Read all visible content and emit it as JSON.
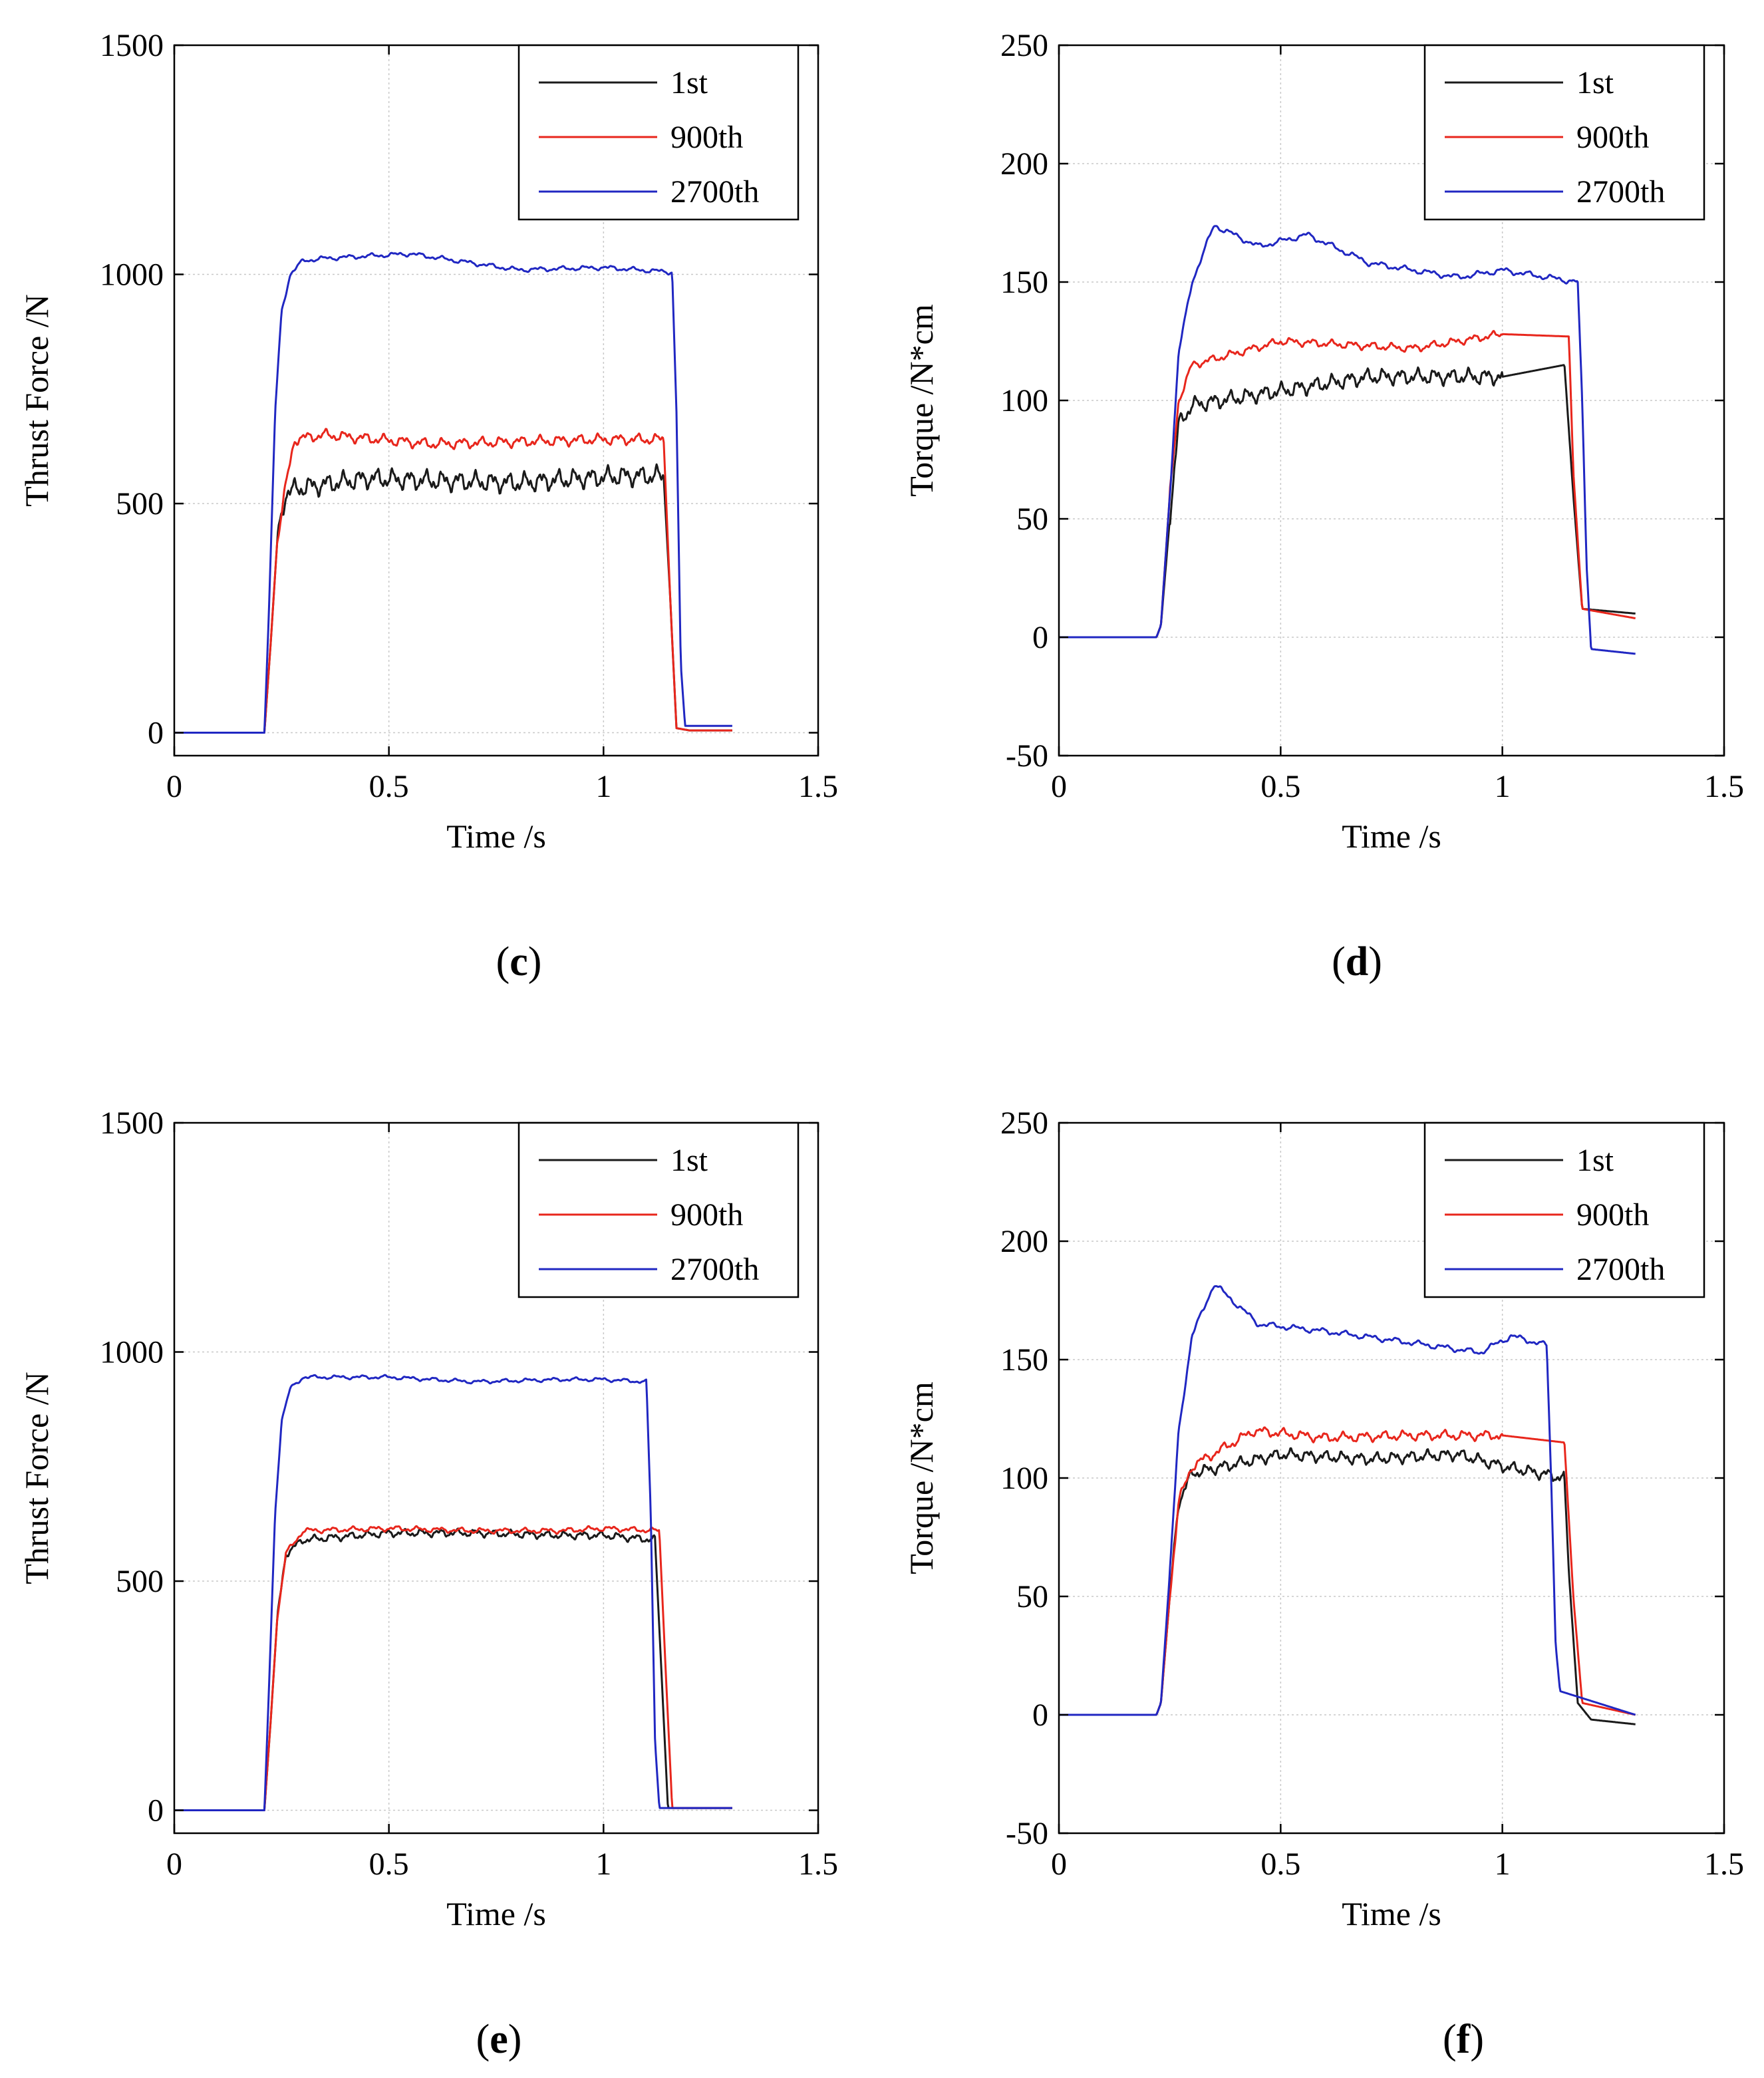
{
  "chart_data": [
    {
      "type": "line",
      "panel_label": "c",
      "xlabel": "Time /s",
      "ylabel": "Thrust Force /N",
      "xlim": [
        0,
        1.5
      ],
      "ylim": [
        -50,
        1500
      ],
      "xticks": [
        0,
        0.5,
        1,
        1.5
      ],
      "xtick_labels": [
        "0",
        "0.5",
        "1",
        "1.5"
      ],
      "yticks": [
        0,
        500,
        1000,
        1500
      ],
      "ytick_labels": [
        "0",
        "500",
        "1000",
        "1500"
      ],
      "grid": true,
      "legend_position": "top-right",
      "series": [
        {
          "name": "1st",
          "color": "#1a1a1a",
          "noise": 26,
          "freq": 26,
          "x": [
            0,
            0.21,
            0.225,
            0.24,
            0.26,
            0.3,
            0.45,
            0.6,
            0.8,
            0.95,
            1.05,
            1.14,
            1.155,
            1.17,
            1.2,
            1.3
          ],
          "y": [
            0,
            0,
            200,
            420,
            525,
            535,
            555,
            550,
            545,
            555,
            560,
            560,
            300,
            10,
            5,
            5
          ]
        },
        {
          "name": "900th",
          "color": "#e8261c",
          "noise": 14,
          "freq": 22,
          "x": [
            0,
            0.21,
            0.225,
            0.24,
            0.26,
            0.28,
            0.35,
            0.6,
            0.8,
            1.0,
            1.14,
            1.155,
            1.17,
            1.2,
            1.3
          ],
          "y": [
            0,
            0,
            200,
            420,
            540,
            640,
            650,
            630,
            635,
            640,
            640,
            300,
            10,
            5,
            5
          ]
        },
        {
          "name": "2700th",
          "color": "#2027c2",
          "noise": 6,
          "freq": 18,
          "x": [
            0,
            0.21,
            0.22,
            0.235,
            0.25,
            0.27,
            0.3,
            0.35,
            0.55,
            0.8,
            1.0,
            1.16,
            1.17,
            1.18,
            1.19,
            1.3
          ],
          "y": [
            0,
            0,
            250,
            700,
            920,
            1000,
            1030,
            1035,
            1045,
            1010,
            1015,
            1005,
            700,
            150,
            15,
            15
          ]
        }
      ]
    },
    {
      "type": "line",
      "panel_label": "d",
      "xlabel": "Time /s",
      "ylabel": "Torque /N*cm",
      "xlim": [
        0,
        1.5
      ],
      "ylim": [
        -50,
        250
      ],
      "xticks": [
        0,
        0.5,
        1,
        1.5
      ],
      "xtick_labels": [
        "0",
        "0.5",
        "1",
        "1.5"
      ],
      "yticks": [
        -50,
        0,
        50,
        100,
        150,
        200,
        250
      ],
      "ytick_labels": [
        "-50",
        "0",
        "50",
        "100",
        "150",
        "200",
        "250"
      ],
      "grid": true,
      "legend_position": "top-right",
      "series": [
        {
          "name": "1st",
          "color": "#1a1a1a",
          "noise": 4,
          "freq": 26,
          "x": [
            0,
            0.22,
            0.23,
            0.25,
            0.27,
            0.3,
            0.5,
            0.7,
            0.9,
            1.0,
            1.14,
            1.16,
            1.18,
            1.3
          ],
          "y": [
            0,
            0,
            5,
            50,
            90,
            98,
            104,
            110,
            110,
            110,
            115,
            60,
            12,
            10
          ]
        },
        {
          "name": "900th",
          "color": "#e8261c",
          "noise": 2,
          "freq": 22,
          "x": [
            0,
            0.22,
            0.23,
            0.25,
            0.27,
            0.3,
            0.5,
            0.8,
            1.0,
            1.15,
            1.16,
            1.18,
            1.3
          ],
          "y": [
            0,
            0,
            5,
            60,
            100,
            115,
            125,
            122,
            128,
            127,
            70,
            12,
            8
          ]
        },
        {
          "name": "2700th",
          "color": "#2027c2",
          "noise": 1.5,
          "freq": 18,
          "x": [
            0,
            0.22,
            0.23,
            0.25,
            0.27,
            0.3,
            0.35,
            0.45,
            0.56,
            0.7,
            0.9,
            1.0,
            1.17,
            1.18,
            1.19,
            1.2,
            1.3
          ],
          "y": [
            0,
            0,
            5,
            60,
            120,
            150,
            174,
            165,
            170,
            158,
            152,
            155,
            150,
            100,
            30,
            -5,
            -7
          ]
        }
      ]
    },
    {
      "type": "line",
      "panel_label": "e",
      "xlabel": "Time /s",
      "ylabel": "Thrust Force /N",
      "xlim": [
        0,
        1.5
      ],
      "ylim": [
        -50,
        1500
      ],
      "xticks": [
        0,
        0.5,
        1,
        1.5
      ],
      "xtick_labels": [
        "0",
        "0.5",
        "1",
        "1.5"
      ],
      "yticks": [
        0,
        500,
        1000,
        1500
      ],
      "ytick_labels": [
        "0",
        "500",
        "1000",
        "1500"
      ],
      "grid": true,
      "legend_position": "top-right",
      "series": [
        {
          "name": "1st",
          "color": "#1a1a1a",
          "noise": 10,
          "freq": 24,
          "x": [
            0,
            0.21,
            0.225,
            0.24,
            0.26,
            0.3,
            0.5,
            0.7,
            0.9,
            1.0,
            1.12,
            1.135,
            1.15,
            1.2,
            1.3
          ],
          "y": [
            0,
            0,
            200,
            420,
            560,
            590,
            605,
            605,
            600,
            600,
            590,
            300,
            5,
            5,
            5
          ]
        },
        {
          "name": "900th",
          "color": "#e8261c",
          "noise": 7,
          "freq": 20,
          "x": [
            0,
            0.21,
            0.225,
            0.24,
            0.26,
            0.3,
            0.5,
            0.7,
            0.9,
            1.0,
            1.13,
            1.145,
            1.16,
            1.2,
            1.3
          ],
          "y": [
            0,
            0,
            200,
            420,
            560,
            610,
            615,
            610,
            610,
            615,
            610,
            300,
            5,
            5,
            5
          ]
        },
        {
          "name": "2700th",
          "color": "#2027c2",
          "noise": 5,
          "freq": 18,
          "x": [
            0,
            0.21,
            0.22,
            0.235,
            0.25,
            0.27,
            0.3,
            0.5,
            0.7,
            0.9,
            1.0,
            1.1,
            1.11,
            1.12,
            1.13,
            1.3
          ],
          "y": [
            0,
            0,
            250,
            650,
            850,
            920,
            945,
            945,
            935,
            940,
            940,
            935,
            650,
            150,
            5,
            5
          ]
        }
      ]
    },
    {
      "type": "line",
      "panel_label": "f",
      "xlabel": "Time /s",
      "ylabel": "Torque /N*cm",
      "xlim": [
        0,
        1.5
      ],
      "ylim": [
        -50,
        250
      ],
      "xticks": [
        0,
        0.5,
        1,
        1.5
      ],
      "xtick_labels": [
        "0",
        "0.5",
        "1",
        "1.5"
      ],
      "yticks": [
        -50,
        0,
        50,
        100,
        150,
        200,
        250
      ],
      "ytick_labels": [
        "-50",
        "0",
        "50",
        "100",
        "150",
        "200",
        "250"
      ],
      "grid": true,
      "legend_position": "top-right",
      "series": [
        {
          "name": "1st",
          "color": "#1a1a1a",
          "noise": 3,
          "freq": 26,
          "x": [
            0,
            0.22,
            0.23,
            0.25,
            0.27,
            0.3,
            0.5,
            0.7,
            0.9,
            1.0,
            1.14,
            1.15,
            1.17,
            1.2,
            1.3
          ],
          "y": [
            0,
            0,
            5,
            50,
            90,
            102,
            110,
            108,
            110,
            105,
            100,
            60,
            5,
            -2,
            -4
          ]
        },
        {
          "name": "900th",
          "color": "#e8261c",
          "noise": 2.5,
          "freq": 22,
          "x": [
            0,
            0.22,
            0.23,
            0.25,
            0.27,
            0.3,
            0.44,
            0.6,
            0.8,
            1.0,
            1.14,
            1.16,
            1.18,
            1.3
          ],
          "y": [
            0,
            0,
            5,
            50,
            90,
            105,
            120,
            117,
            118,
            118,
            115,
            50,
            5,
            0
          ]
        },
        {
          "name": "2700th",
          "color": "#2027c2",
          "noise": 1.5,
          "freq": 18,
          "x": [
            0,
            0.22,
            0.23,
            0.25,
            0.27,
            0.3,
            0.35,
            0.45,
            0.6,
            0.8,
            0.95,
            1.02,
            1.1,
            1.11,
            1.12,
            1.13,
            1.3
          ],
          "y": [
            0,
            0,
            5,
            60,
            120,
            160,
            182,
            165,
            162,
            157,
            153,
            160,
            156,
            100,
            30,
            10,
            0
          ]
        }
      ]
    }
  ]
}
